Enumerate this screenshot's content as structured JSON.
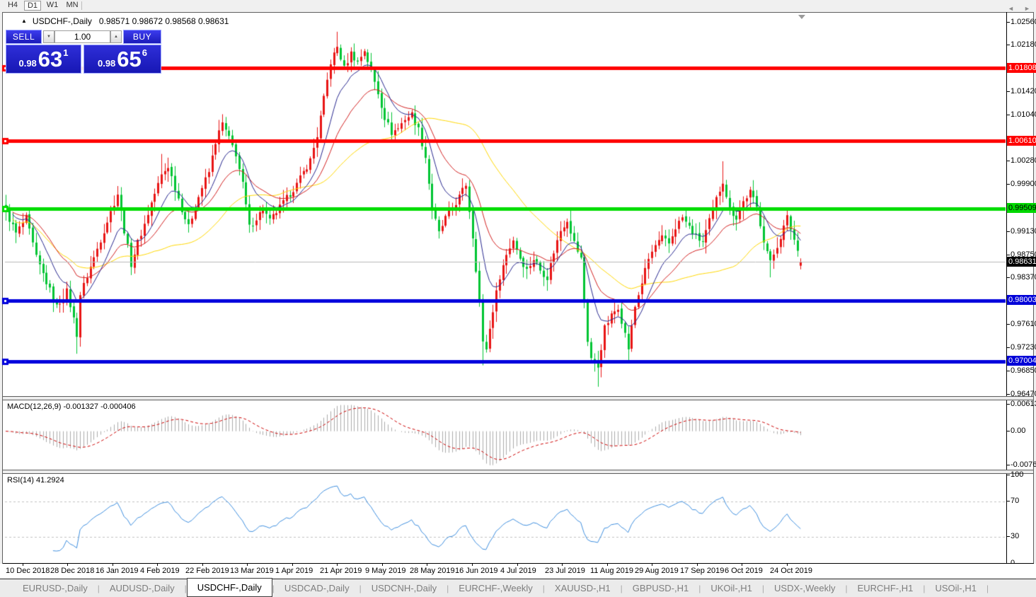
{
  "toolbar": {
    "timeframes": [
      {
        "label": "H4",
        "active": false
      },
      {
        "label": "D1",
        "active": true
      },
      {
        "label": "W1",
        "active": false
      },
      {
        "label": "MN",
        "active": false
      }
    ]
  },
  "chart_header": {
    "collapse_icon": "▲",
    "symbol": "USDCHF-,Daily",
    "ohlc": "0.98571 0.98672 0.98568 0.98631"
  },
  "trade_panel": {
    "sell_label": "SELL",
    "buy_label": "BUY",
    "volume": "1.00",
    "spin_down_icon": "▼",
    "spin_up_icon": "▲",
    "sell_price": {
      "prefix": "0.98",
      "big": "63",
      "sup": "1"
    },
    "buy_price": {
      "prefix": "0.98",
      "big": "65",
      "sup": "6"
    }
  },
  "price_axis": {
    "ticks": [
      {
        "label": "1.02560",
        "value": 1.0256
      },
      {
        "label": "1.02180",
        "value": 1.0218
      },
      {
        "label": "1.01420",
        "value": 1.0142
      },
      {
        "label": "1.01040",
        "value": 1.0104
      },
      {
        "label": "1.00280",
        "value": 1.0028
      },
      {
        "label": "0.99900",
        "value": 0.999
      },
      {
        "label": "0.99130",
        "value": 0.9913
      },
      {
        "label": "0.98750",
        "value": 0.9875
      },
      {
        "label": "0.98370",
        "value": 0.9837
      },
      {
        "label": "0.97610",
        "value": 0.9761
      },
      {
        "label": "0.97230",
        "value": 0.9723
      },
      {
        "label": "0.96850",
        "value": 0.9685
      },
      {
        "label": "0.96470",
        "value": 0.9647
      }
    ],
    "badges": [
      {
        "label": "1.01808",
        "value": 1.01808,
        "bg": "#FF0000",
        "fg": "#FFFFFF"
      },
      {
        "label": "1.00610",
        "value": 1.0061,
        "bg": "#FF0000",
        "fg": "#FFFFFF"
      },
      {
        "label": "0.99509",
        "value": 0.99509,
        "bg": "#00D800",
        "fg": "#000000"
      },
      {
        "label": "0.98631",
        "value": 0.98631,
        "bg": "#000000",
        "fg": "#FFFFFF"
      },
      {
        "label": "0.98003",
        "value": 0.98003,
        "bg": "#0000D8",
        "fg": "#FFFFFF"
      },
      {
        "label": "0.97004",
        "value": 0.97004,
        "bg": "#0000D8",
        "fg": "#FFFFFF"
      }
    ]
  },
  "macd_panel": {
    "label": "MACD(12,26,9) -0.001327 -0.000406",
    "params": [
      12,
      26,
      9
    ],
    "main_value": "-0.001327",
    "signal_value": "-0.000406",
    "axis": [
      {
        "label": "0.00613",
        "value": 0.00613
      },
      {
        "label": "0.00",
        "value": 0
      },
      {
        "label": "-0.007612",
        "value": -0.007612
      }
    ],
    "histogram_color": "#ABABAB",
    "signal_color": "#CC0000"
  },
  "rsi_panel": {
    "label": "RSI(14) 41.2924",
    "period": 14,
    "value": "41.2924",
    "axis": [
      {
        "label": "100",
        "value": 100
      },
      {
        "label": "70",
        "value": 70
      },
      {
        "label": "30",
        "value": 30
      },
      {
        "label": "0",
        "value": 0
      }
    ],
    "level_lines": [
      70,
      30
    ],
    "line_color": "#3E8EDE"
  },
  "tabs": {
    "items": [
      {
        "label": "EURUSD-,Daily",
        "active": false
      },
      {
        "label": "AUDUSD-,Daily",
        "active": false
      },
      {
        "label": "USDCHF-,Daily",
        "active": true
      },
      {
        "label": "USDCAD-,Daily",
        "active": false
      },
      {
        "label": "USDCNH-,Daily",
        "active": false
      },
      {
        "label": "EURCHF-,Weekly",
        "active": false
      },
      {
        "label": "XAUUSD-,H1",
        "active": false
      },
      {
        "label": "GBPUSD-,H1",
        "active": false
      },
      {
        "label": "UKOil-,H1",
        "active": false
      },
      {
        "label": "USDX-,Weekly",
        "active": false
      },
      {
        "label": "EURCHF-,H1",
        "active": false
      },
      {
        "label": "USOil-,H1",
        "active": false
      }
    ],
    "scroll_left_icon": "◄",
    "scroll_right_icon": "►"
  },
  "chart_data": {
    "type": "candlestick",
    "symbol": "USDCHF-",
    "timeframe": "Daily",
    "ohlc": {
      "open": 0.98571,
      "high": 0.98672,
      "low": 0.98568,
      "close": 0.98631
    },
    "bars": 236,
    "up_color": "#E81414",
    "down_color": "#00C432",
    "y_axis": {
      "min": 0.9647,
      "max": 1.0256,
      "tick_step": 0.0038
    },
    "current_price": {
      "value": 0.98631,
      "line_color": "#B8B8B8"
    },
    "horizontal_lines": [
      {
        "value": 1.01808,
        "color": "#FF0000",
        "thickness": 5
      },
      {
        "value": 1.0061,
        "color": "#FF0000",
        "thickness": 5
      },
      {
        "value": 0.99509,
        "color": "#00DD00",
        "thickness": 5
      },
      {
        "value": 0.98003,
        "color": "#0000DD",
        "thickness": 5
      },
      {
        "value": 0.97004,
        "color": "#0000DD",
        "thickness": 5
      }
    ],
    "moving_averages": [
      {
        "type": "ema",
        "period": 10,
        "color": "#26268E"
      },
      {
        "type": "ema",
        "period": 22,
        "color": "#D22020"
      },
      {
        "type": "sma",
        "period": 45,
        "color": "#FFD700"
      }
    ],
    "x_tick_labels": [
      "10 Dec 2018",
      "28 Dec 2018",
      "16 Jan 2019",
      "4 Feb 2019",
      "22 Feb 2019",
      "13 Mar 2019",
      "1 Apr 2019",
      "21 Apr 2019",
      "9 May 2019",
      "28 May 2019",
      "16 Jun 2019",
      "4 Jul 2019",
      "23 Jul 2019",
      "11 Aug 2019",
      "29 Aug 2019",
      "17 Sep 2019",
      "6 Oct 2019",
      "24 Oct 2019"
    ],
    "price_path": [
      [
        0,
        0.9945
      ],
      [
        3,
        0.991
      ],
      [
        6,
        0.9935
      ],
      [
        9,
        0.987
      ],
      [
        12,
        0.983
      ],
      [
        15,
        0.979
      ],
      [
        18,
        0.9815
      ],
      [
        20,
        0.977
      ],
      [
        21,
        0.9745
      ],
      [
        22,
        0.981
      ],
      [
        24,
        0.984
      ],
      [
        27,
        0.9885
      ],
      [
        30,
        0.993
      ],
      [
        33,
        0.9975
      ],
      [
        35,
        0.9915
      ],
      [
        37,
        0.986
      ],
      [
        39,
        0.9895
      ],
      [
        41,
        0.9925
      ],
      [
        43,
        0.996
      ],
      [
        46,
        1.0005
      ],
      [
        48,
        1.002
      ],
      [
        50,
        0.9985
      ],
      [
        52,
        0.995
      ],
      [
        54,
        0.992
      ],
      [
        56,
        0.9955
      ],
      [
        58,
        0.9985
      ],
      [
        60,
        1.001
      ],
      [
        62,
        1.006
      ],
      [
        64,
        1.009
      ],
      [
        66,
        1.0065
      ],
      [
        68,
        1.004
      ],
      [
        70,
        0.999
      ],
      [
        72,
        0.992
      ],
      [
        74,
        0.9935
      ],
      [
        76,
        0.995
      ],
      [
        78,
        0.993
      ],
      [
        80,
        0.9945
      ],
      [
        82,
        0.996
      ],
      [
        84,
        0.9975
      ],
      [
        86,
        0.999
      ],
      [
        88,
        1.001
      ],
      [
        90,
        1.003
      ],
      [
        92,
        1.007
      ],
      [
        94,
        1.013
      ],
      [
        96,
        1.019
      ],
      [
        98,
        1.0215
      ],
      [
        100,
        1.018
      ],
      [
        102,
        1.0205
      ],
      [
        104,
        1.019
      ],
      [
        106,
        1.021
      ],
      [
        108,
        1.0175
      ],
      [
        110,
        1.014
      ],
      [
        112,
        1.01
      ],
      [
        114,
        1.0075
      ],
      [
        116,
        1.0082
      ],
      [
        118,
        1.0098
      ],
      [
        120,
        1.0105
      ],
      [
        122,
        1.008
      ],
      [
        124,
        1.0035
      ],
      [
        126,
        0.995
      ],
      [
        128,
        0.991
      ],
      [
        130,
        0.9935
      ],
      [
        132,
        0.995
      ],
      [
        134,
        0.997
      ],
      [
        136,
        0.999
      ],
      [
        138,
        0.9905
      ],
      [
        140,
        0.98
      ],
      [
        141,
        0.973
      ],
      [
        142,
        0.9722
      ],
      [
        144,
        0.9785
      ],
      [
        146,
        0.984
      ],
      [
        148,
        0.9875
      ],
      [
        150,
        0.99
      ],
      [
        152,
        0.987
      ],
      [
        154,
        0.985
      ],
      [
        156,
        0.9868
      ],
      [
        158,
        0.985
      ],
      [
        160,
        0.9838
      ],
      [
        162,
        0.988
      ],
      [
        164,
        0.9915
      ],
      [
        166,
        0.9933
      ],
      [
        168,
        0.9895
      ],
      [
        170,
        0.9868
      ],
      [
        171,
        0.98
      ],
      [
        172,
        0.9735
      ],
      [
        173,
        0.9706
      ],
      [
        175,
        0.9692
      ],
      [
        177,
        0.9755
      ],
      [
        179,
        0.9775
      ],
      [
        181,
        0.979
      ],
      [
        183,
        0.9745
      ],
      [
        184,
        0.9722
      ],
      [
        186,
        0.979
      ],
      [
        188,
        0.983
      ],
      [
        190,
        0.9868
      ],
      [
        192,
        0.989
      ],
      [
        194,
        0.9902
      ],
      [
        196,
        0.9893
      ],
      [
        198,
        0.992
      ],
      [
        200,
        0.9936
      ],
      [
        202,
        0.992
      ],
      [
        204,
        0.9904
      ],
      [
        206,
        0.9896
      ],
      [
        208,
        0.993
      ],
      [
        210,
        0.9966
      ],
      [
        212,
        0.9996
      ],
      [
        214,
        0.995
      ],
      [
        216,
        0.9936
      ],
      [
        218,
        0.9962
      ],
      [
        220,
        0.9978
      ],
      [
        222,
        0.9952
      ],
      [
        224,
        0.99
      ],
      [
        226,
        0.9862
      ],
      [
        228,
        0.989
      ],
      [
        230,
        0.992
      ],
      [
        231,
        0.9936
      ],
      [
        233,
        0.99
      ],
      [
        235,
        0.9863
      ]
    ],
    "spike_lows": [
      [
        21,
        0.9713
      ],
      [
        141,
        0.9694
      ],
      [
        175,
        0.9659
      ],
      [
        184,
        0.97
      ],
      [
        226,
        0.9838
      ]
    ],
    "spike_highs": [
      [
        46,
        1.004
      ],
      [
        64,
        1.0105
      ],
      [
        98,
        1.024
      ],
      [
        135,
        1.0
      ],
      [
        212,
        1.0028
      ]
    ]
  }
}
